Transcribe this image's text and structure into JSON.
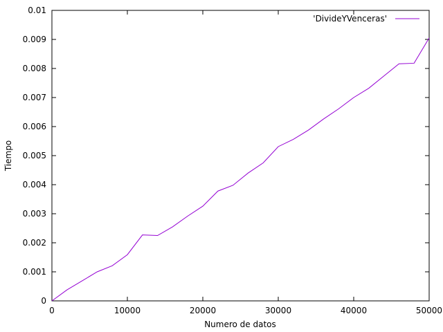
{
  "chart_data": {
    "type": "line",
    "title": "",
    "xlabel": "Numero de datos",
    "ylabel": "Tiempo",
    "xlim": [
      0,
      50000
    ],
    "ylim": [
      0,
      0.01
    ],
    "x_ticks": [
      "0",
      "10000",
      "20000",
      "30000",
      "40000",
      "50000"
    ],
    "y_ticks": [
      "0",
      "0.001",
      "0.002",
      "0.003",
      "0.004",
      "0.005",
      "0.006",
      "0.007",
      "0.008",
      "0.009",
      "0.01"
    ],
    "grid": false,
    "legend_position": "top-right",
    "series": [
      {
        "name": "'DivideYVenceras'",
        "color": "#9400d3",
        "x": [
          0,
          2000,
          4000,
          6000,
          8000,
          10000,
          12000,
          14000,
          16000,
          18000,
          20000,
          22000,
          24000,
          26000,
          28000,
          30000,
          32000,
          34000,
          36000,
          38000,
          40000,
          42000,
          44000,
          46000,
          48000,
          50000
        ],
        "y": [
          0.0,
          0.00038,
          0.00069,
          0.001,
          0.00121,
          0.00159,
          0.00227,
          0.00225,
          0.00255,
          0.00292,
          0.00326,
          0.00378,
          0.00398,
          0.0044,
          0.00475,
          0.00531,
          0.00556,
          0.00588,
          0.00626,
          0.00661,
          0.007,
          0.00732,
          0.00774,
          0.00816,
          0.00818,
          0.00905
        ]
      }
    ]
  }
}
